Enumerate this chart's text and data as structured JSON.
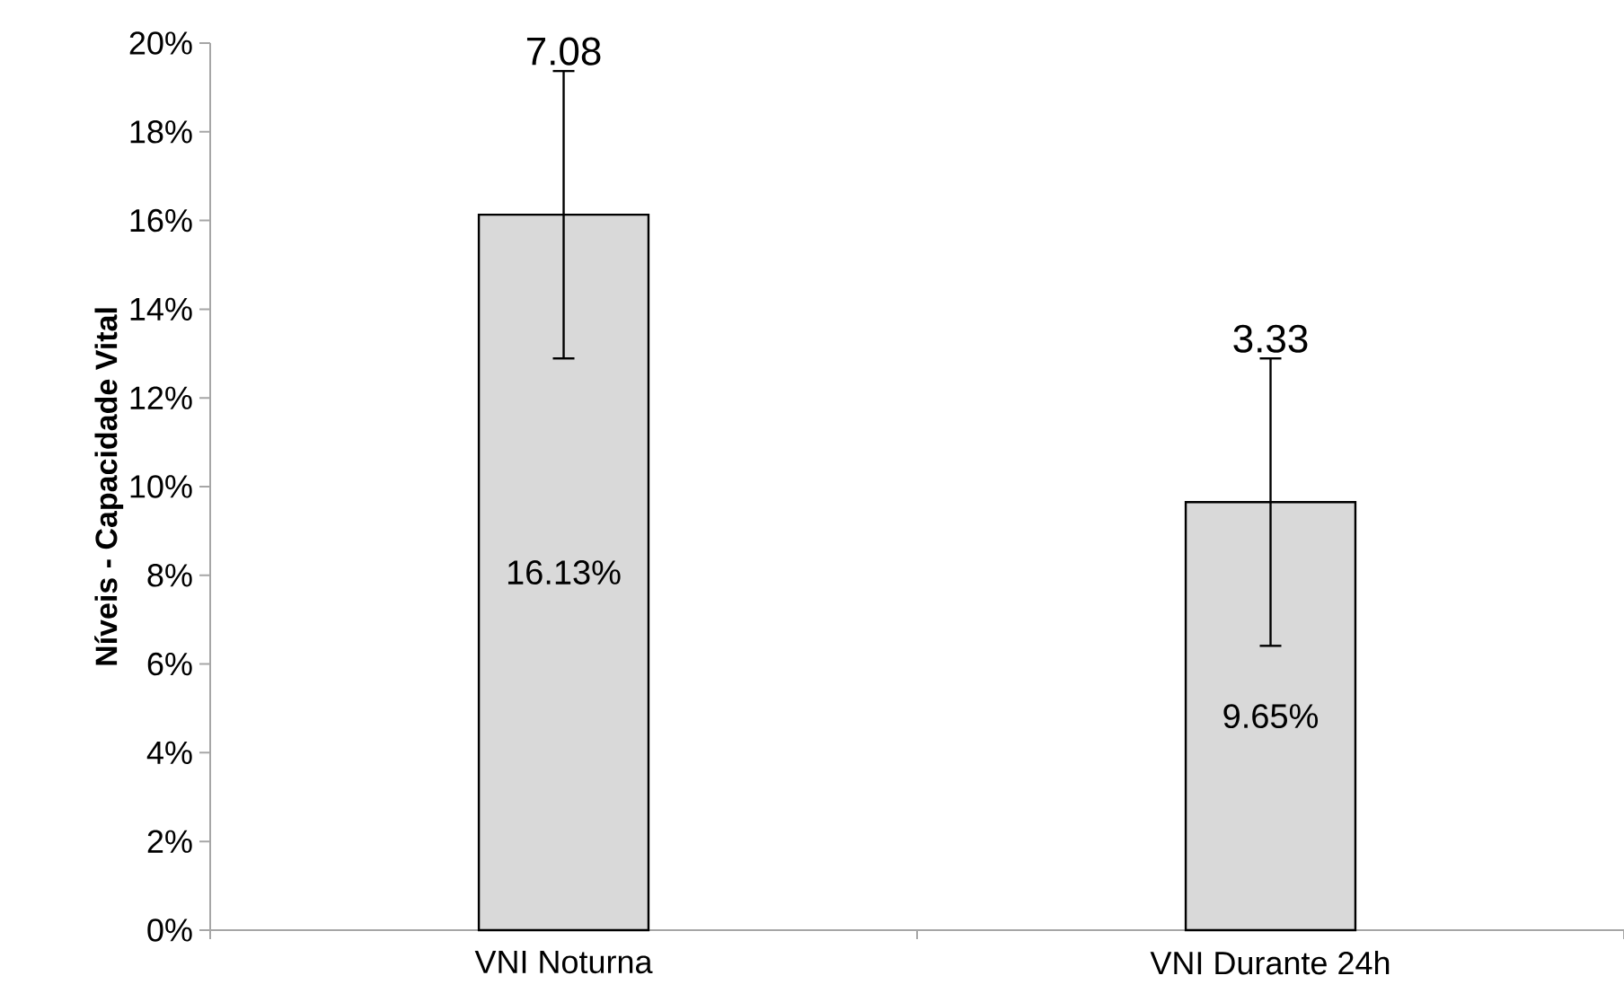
{
  "chart_data": {
    "type": "bar",
    "ylabel": "**Níveis - Capacidade Vital**",
    "categories": [
      "VNI Noturna",
      "VNI Durante 24h"
    ],
    "values": [
      16.13,
      9.65
    ],
    "errors": [
      3.24,
      3.24
    ],
    "value_labels": [
      "16.13%",
      "9.65%"
    ],
    "color": "#d9d9d9",
    "annotations": [
      {
        "text": "7.08",
        "x": "VNI Noturna",
        "y": 19.37
      },
      {
        "text": "3.33",
        "x": "VNI Durante 24h",
        "y": 12.89
      }
    ],
    "ylim": [
      0,
      20
    ],
    "yticks": [
      {
        "value": 0,
        "label": "0%"
      },
      {
        "value": 2,
        "label": "2%"
      },
      {
        "value": 4,
        "label": "4%"
      },
      {
        "value": 6,
        "label": "6%"
      },
      {
        "value": 8,
        "label": "8%"
      },
      {
        "value": 10,
        "label": "10%"
      },
      {
        "value": 12,
        "label": "12%"
      },
      {
        "value": 14,
        "label": "14%"
      },
      {
        "value": 16,
        "label": "16%"
      },
      {
        "value": 18,
        "label": "18%"
      },
      {
        "value": 20,
        "label": "20%"
      }
    ],
    "grid": false
  }
}
